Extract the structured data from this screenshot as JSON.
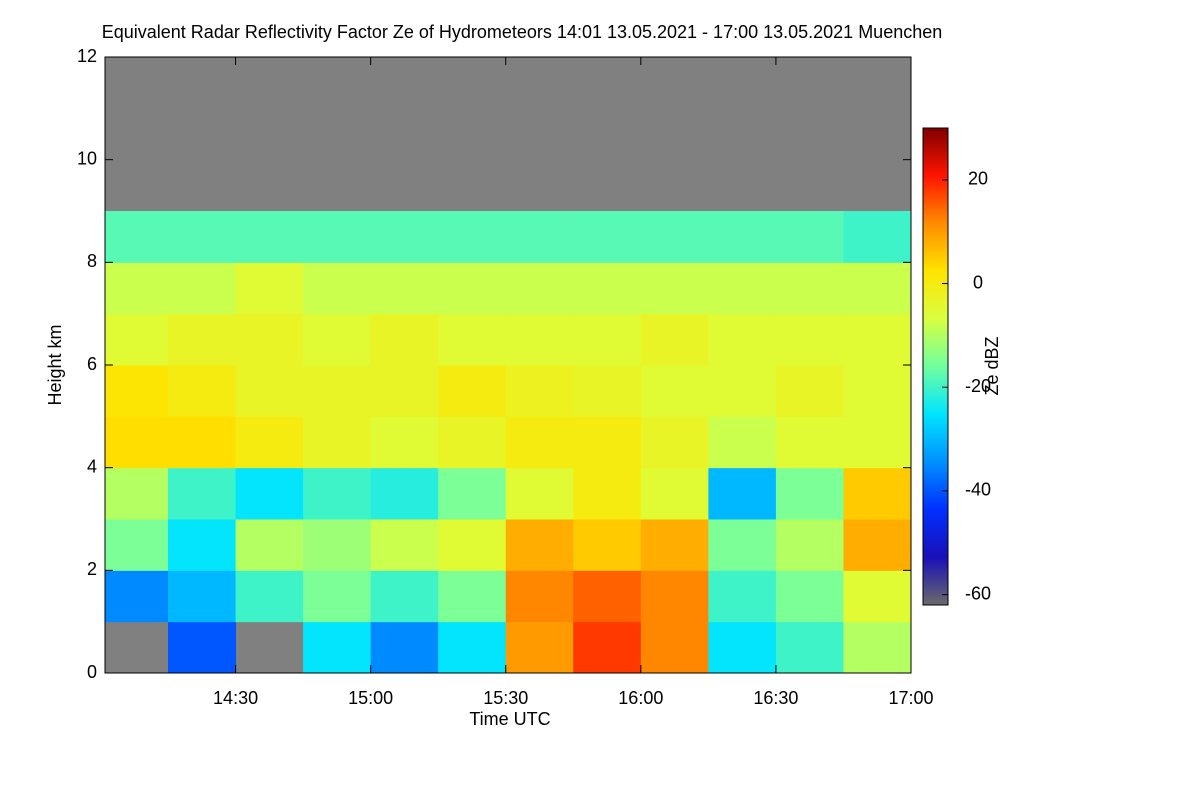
{
  "chart_data": {
    "type": "heatmap",
    "title": "Equivalent Radar Reflectivity Factor Ze of Hydrometeors   14:01 13.05.2021 - 17:00 13.05.2021 Muenchen",
    "x_label": "Time UTC",
    "y_label": "Height km",
    "colorbar_label": "Ze dBZ",
    "xlim": [
      14.0167,
      17
    ],
    "xticks": [
      {
        "value": 14.5,
        "label": "14:30"
      },
      {
        "value": 15,
        "label": "15:00"
      },
      {
        "value": 15.5,
        "label": "15:30"
      },
      {
        "value": 16,
        "label": "16:00"
      },
      {
        "value": 16.5,
        "label": "16:30"
      },
      {
        "value": 17,
        "label": "17:00"
      }
    ],
    "ylim": [
      0,
      12
    ],
    "yticks": [
      0,
      2,
      4,
      6,
      8,
      10,
      12
    ],
    "clim": [
      -62,
      30
    ],
    "cticks": [
      20,
      0,
      -20,
      -40,
      -60
    ],
    "colormap": [
      "#6a6a6a",
      "#1a10b8",
      "#0030ff",
      "#0090ff",
      "#00e4ff",
      "#70ffa0",
      "#d8ff40",
      "#ffe400",
      "#ff8c00",
      "#ff1400",
      "#800000"
    ],
    "no_signal_color": "#808080",
    "x_bins": [
      14.0167,
      14.25,
      14.5,
      14.75,
      15,
      15.25,
      15.5,
      15.75,
      16,
      16.25,
      16.5,
      16.75,
      17
    ],
    "y_bins": [
      0,
      1,
      2,
      3,
      4,
      5,
      6,
      7,
      8,
      9,
      10,
      11,
      12
    ],
    "z": [
      [
        null,
        -40,
        null,
        -25,
        -35,
        -25,
        10,
        18,
        12,
        -25,
        -20,
        -10
      ],
      [
        -35,
        -30,
        -20,
        -15,
        -20,
        -15,
        12,
        15,
        12,
        -20,
        -15,
        -5
      ],
      [
        -15,
        -25,
        -10,
        -12,
        -8,
        -5,
        8,
        5,
        8,
        -15,
        -10,
        8
      ],
      [
        -10,
        -20,
        -25,
        -20,
        -22,
        -15,
        -5,
        0,
        -5,
        -30,
        -15,
        5
      ],
      [
        3,
        3,
        0,
        -3,
        -5,
        -3,
        0,
        0,
        -3,
        -8,
        -5,
        -5
      ],
      [
        2,
        0,
        -3,
        -3,
        -3,
        0,
        -2,
        -3,
        -5,
        -5,
        -3,
        -5
      ],
      [
        -5,
        -3,
        -3,
        -5,
        -3,
        -5,
        -5,
        -5,
        -3,
        -5,
        -5,
        -5
      ],
      [
        -8,
        -8,
        -5,
        -8,
        -8,
        -8,
        -8,
        -8,
        -8,
        -8,
        -8,
        -8
      ],
      [
        -18,
        -18,
        -18,
        -18,
        -18,
        -18,
        -18,
        -18,
        -18,
        -18,
        -18,
        -20
      ],
      [
        null,
        null,
        null,
        null,
        null,
        null,
        null,
        null,
        null,
        null,
        null,
        null
      ],
      [
        null,
        null,
        null,
        null,
        null,
        null,
        null,
        null,
        null,
        null,
        null,
        null
      ],
      [
        null,
        null,
        null,
        null,
        null,
        null,
        null,
        null,
        null,
        null,
        null,
        null
      ]
    ]
  }
}
